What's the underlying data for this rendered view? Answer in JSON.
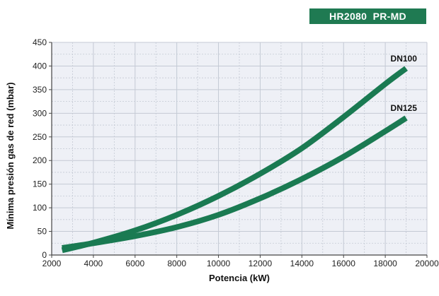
{
  "badge": {
    "text": "HR2080  PR-MD",
    "color": "#1f7a52"
  },
  "chart_data": {
    "type": "line",
    "title": "",
    "xlabel": "Potencia (kW)",
    "ylabel": "Mínima presión gas de red (mbar)",
    "xlim": [
      2000,
      20000
    ],
    "ylim": [
      0,
      450
    ],
    "xticks": [
      2000,
      4000,
      6000,
      8000,
      10000,
      12000,
      14000,
      16000,
      18000,
      20000
    ],
    "yticks": [
      0,
      50,
      100,
      150,
      200,
      250,
      300,
      350,
      400,
      450
    ],
    "grid": true,
    "colors": {
      "line": "#1a7a52",
      "grid": "#c4c9d4",
      "plot_bg": "#eef0f6",
      "axis": "#444444"
    },
    "series": [
      {
        "name": "DN100",
        "x": [
          2500,
          4000,
          6000,
          8000,
          10000,
          12000,
          14000,
          16000,
          18000,
          19000
        ],
        "y": [
          10,
          26,
          52,
          85,
          125,
          172,
          226,
          292,
          362,
          395
        ]
      },
      {
        "name": "DN125",
        "x": [
          2500,
          4000,
          6000,
          8000,
          10000,
          12000,
          14000,
          16000,
          18000,
          19000
        ],
        "y": [
          15,
          25,
          40,
          59,
          85,
          120,
          161,
          208,
          262,
          290
        ]
      }
    ]
  }
}
